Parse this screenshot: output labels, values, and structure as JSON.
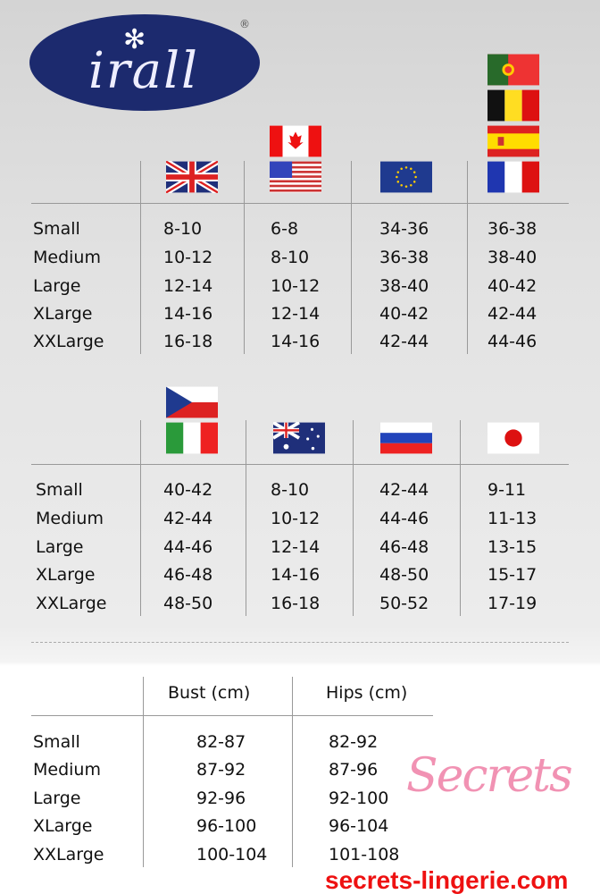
{
  "logo": {
    "text": "irall",
    "registered": "®",
    "color": "#1c2a6e"
  },
  "sizes": [
    "Small",
    "Medium",
    "Large",
    "XLarge",
    "XXLarge"
  ],
  "table1": {
    "columns": [
      {
        "flags": [
          "uk-flag-icon"
        ],
        "values": [
          "8-10",
          "10-12",
          "12-14",
          "14-16",
          "16-18"
        ]
      },
      {
        "flags": [
          "canada-flag-icon",
          "usa-flag-icon"
        ],
        "values": [
          "6-8",
          "8-10",
          "10-12",
          "12-14",
          "14-16"
        ]
      },
      {
        "flags": [
          "eu-flag-icon"
        ],
        "values": [
          "34-36",
          "36-38",
          "38-40",
          "40-42",
          "42-44"
        ]
      },
      {
        "flags": [
          "portugal-flag-icon",
          "belgium-flag-icon",
          "spain-flag-icon",
          "france-flag-icon"
        ],
        "values": [
          "36-38",
          "38-40",
          "40-42",
          "42-44",
          "44-46"
        ]
      }
    ]
  },
  "table2": {
    "columns": [
      {
        "flags": [
          "czech-flag-icon",
          "italy-flag-icon"
        ],
        "values": [
          "40-42",
          "42-44",
          "44-46",
          "46-48",
          "48-50"
        ]
      },
      {
        "flags": [
          "australia-flag-icon"
        ],
        "values": [
          "8-10",
          "10-12",
          "12-14",
          "14-16",
          "16-18"
        ]
      },
      {
        "flags": [
          "russia-flag-icon"
        ],
        "values": [
          "42-44",
          "44-46",
          "46-48",
          "48-50",
          "50-52"
        ]
      },
      {
        "flags": [
          "japan-flag-icon"
        ],
        "values": [
          "9-11",
          "11-13",
          "13-15",
          "15-17",
          "17-19"
        ]
      }
    ]
  },
  "table3": {
    "headers": [
      "Bust (cm)",
      "Hips (cm)"
    ],
    "bust": [
      "82-87",
      "87-92",
      "92-96",
      "96-100",
      "100-104"
    ],
    "hips": [
      "82-92",
      "87-96",
      "92-100",
      "96-104",
      "101-108"
    ]
  },
  "watermark": {
    "script": "Secrets",
    "url": "secrets-lingerie.com",
    "script_color": "#ee7fa6",
    "url_color": "#ee1111"
  }
}
